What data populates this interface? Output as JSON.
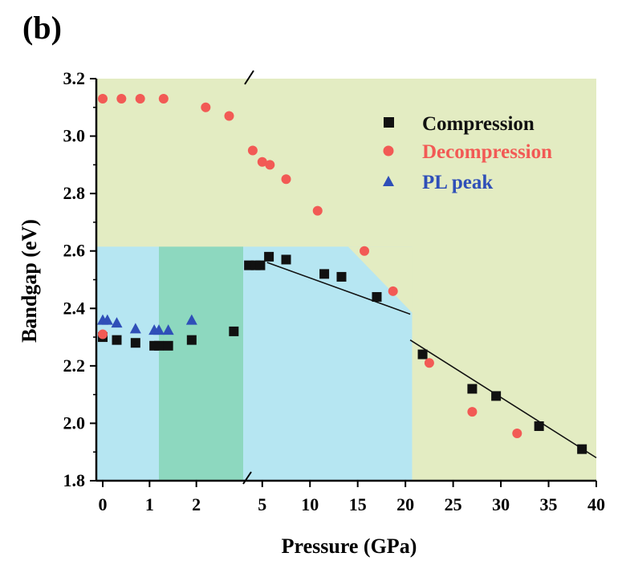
{
  "panel_label": "(b)",
  "colors": {
    "compression": "#111111",
    "decompression": "#f25a55",
    "pl_peak": "#2f4fb8",
    "background_green": "#e3ecc2",
    "region_blue": "#b6e6f2",
    "region_teal": "#8dd8bf",
    "fit_line": "#111111"
  },
  "chart_data": {
    "type": "scatter",
    "xlabel": "Pressure (GPa)",
    "ylabel": "Bandgap (eV)",
    "ylim": [
      1.8,
      3.2
    ],
    "yticks": [
      "1.8",
      "2.0",
      "2.2",
      "2.4",
      "2.6",
      "2.8",
      "3.0",
      "3.2"
    ],
    "x_axis_break": "broken axis: 0–3 GPa (expanded) then 3–40 GPa",
    "xticks_low": [
      "0",
      "1",
      "2"
    ],
    "xticks_high": [
      "5",
      "10",
      "15",
      "20",
      "25",
      "30",
      "35",
      "40"
    ],
    "legend": [
      {
        "label": "Compression",
        "marker": "square",
        "color": "#111111"
      },
      {
        "label": "Decompression",
        "marker": "circle",
        "color": "#f25a55"
      },
      {
        "label": "PL peak",
        "marker": "triangle",
        "color": "#2f4fb8"
      }
    ],
    "series": [
      {
        "name": "Compression",
        "marker": "square",
        "points": [
          [
            0.0,
            2.3
          ],
          [
            0.3,
            2.29
          ],
          [
            0.7,
            2.28
          ],
          [
            1.1,
            2.27
          ],
          [
            1.2,
            2.27
          ],
          [
            1.4,
            2.27
          ],
          [
            1.9,
            2.29
          ],
          [
            2.8,
            2.32
          ],
          [
            3.6,
            2.55
          ],
          [
            4.3,
            2.55
          ],
          [
            4.8,
            2.55
          ],
          [
            5.7,
            2.58
          ],
          [
            7.5,
            2.57
          ],
          [
            11.5,
            2.52
          ],
          [
            13.3,
            2.51
          ],
          [
            17.0,
            2.44
          ],
          [
            21.8,
            2.24
          ],
          [
            27.0,
            2.12
          ],
          [
            29.5,
            2.095
          ],
          [
            34.0,
            1.99
          ],
          [
            38.5,
            1.91
          ]
        ]
      },
      {
        "name": "Decompression",
        "marker": "circle",
        "points": [
          [
            0.0,
            3.13
          ],
          [
            0.4,
            3.13
          ],
          [
            0.8,
            3.13
          ],
          [
            1.3,
            3.13
          ],
          [
            2.2,
            3.1
          ],
          [
            2.7,
            3.07
          ],
          [
            4.0,
            2.95
          ],
          [
            5.0,
            2.91
          ],
          [
            5.8,
            2.9
          ],
          [
            7.5,
            2.85
          ],
          [
            10.8,
            2.74
          ],
          [
            15.7,
            2.6
          ],
          [
            18.7,
            2.46
          ],
          [
            22.5,
            2.21
          ],
          [
            27.0,
            2.04
          ],
          [
            31.7,
            1.965
          ],
          [
            0.0,
            2.31
          ]
        ]
      },
      {
        "name": "PL peak",
        "marker": "triangle",
        "points": [
          [
            0.0,
            2.36
          ],
          [
            0.1,
            2.36
          ],
          [
            0.3,
            2.35
          ],
          [
            0.7,
            2.33
          ],
          [
            1.1,
            2.325
          ],
          [
            1.2,
            2.325
          ],
          [
            1.4,
            2.325
          ],
          [
            1.9,
            2.36
          ]
        ]
      }
    ],
    "fit_lines": [
      {
        "from": [
          5.5,
          2.56
        ],
        "to": [
          20.5,
          2.38
        ]
      },
      {
        "from": [
          20.5,
          2.29
        ],
        "to": [
          40.0,
          1.88
        ]
      }
    ],
    "regions": [
      {
        "name": "green-background",
        "x": [
          0,
          40
        ],
        "y": [
          1.8,
          3.2
        ],
        "color": "#e3ecc2"
      },
      {
        "name": "light-blue-low",
        "x": [
          0,
          1.2
        ],
        "y": [
          1.8,
          2.615
        ],
        "color": "#b6e6f2"
      },
      {
        "name": "teal",
        "x": [
          1.2,
          3.0
        ],
        "y": [
          1.8,
          2.615
        ],
        "color": "#8dd8bf"
      },
      {
        "name": "light-blue-high",
        "x": [
          3.0,
          20.7
        ],
        "y": [
          1.8,
          2.615
        ],
        "color": "#b6e6f2"
      }
    ]
  }
}
